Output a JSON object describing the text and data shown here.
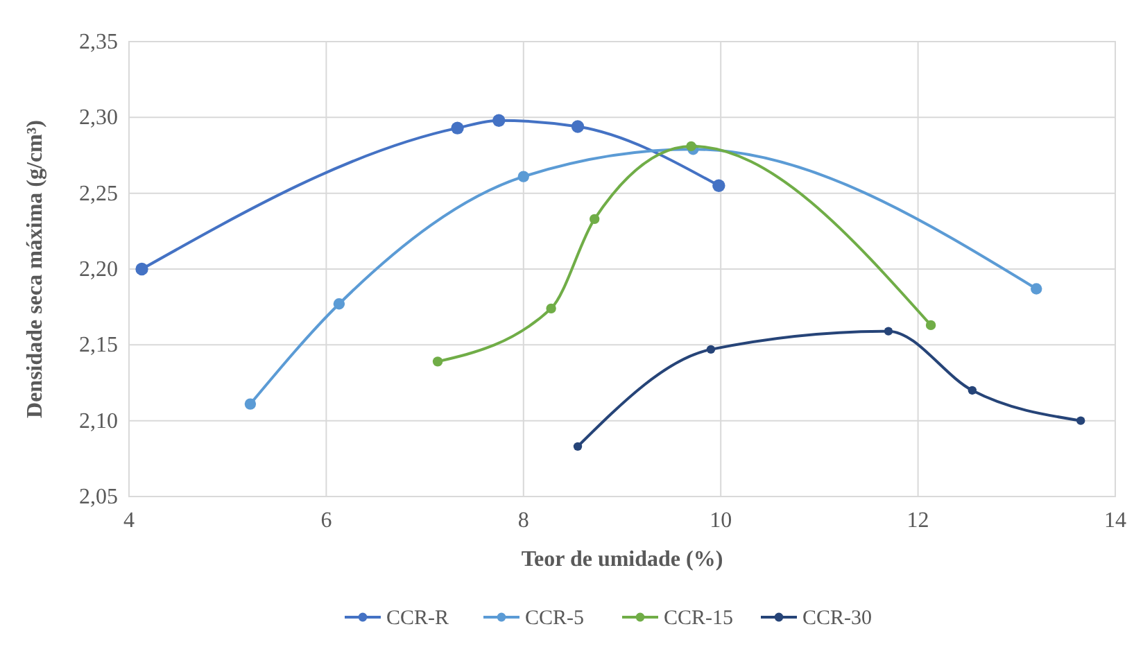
{
  "chart_data": {
    "type": "line",
    "xlabel": "Teor de umidade (%)",
    "ylabel": "Densidade seca máxima (g/cm³)",
    "xlim": [
      4,
      14
    ],
    "xticks": [
      4,
      6,
      8,
      10,
      12,
      14
    ],
    "ylim": [
      2.05,
      2.35
    ],
    "yticks": [
      {
        "value": 2.05,
        "label": "2,05"
      },
      {
        "value": 2.1,
        "label": "2,10"
      },
      {
        "value": 2.15,
        "label": "2,15"
      },
      {
        "value": 2.2,
        "label": "2,20"
      },
      {
        "value": 2.25,
        "label": "2,25"
      },
      {
        "value": 2.3,
        "label": "2,30"
      },
      {
        "value": 2.35,
        "label": "2,35"
      }
    ],
    "grid": true,
    "legend": "bottom",
    "marker": "circle",
    "line_style": "solid",
    "series": [
      {
        "name": "CCR-R",
        "color": "#4472c4",
        "x": [
          4.13,
          7.33,
          7.75,
          8.55,
          9.98
        ],
        "values": [
          2.2,
          2.293,
          2.298,
          2.294,
          2.255
        ]
      },
      {
        "name": "CCR-5",
        "color": "#5b9bd5",
        "x": [
          5.23,
          6.13,
          8.0,
          9.72,
          13.2
        ],
        "values": [
          2.111,
          2.177,
          2.261,
          2.279,
          2.187
        ]
      },
      {
        "name": "CCR-15",
        "color": "#70ad47",
        "x": [
          7.13,
          8.28,
          8.72,
          9.7,
          12.13
        ],
        "values": [
          2.139,
          2.174,
          2.233,
          2.281,
          2.163
        ]
      },
      {
        "name": "CCR-30",
        "color": "#264478",
        "x": [
          8.55,
          9.9,
          11.7,
          12.55,
          13.65
        ],
        "values": [
          2.083,
          2.147,
          2.159,
          2.12,
          2.1
        ]
      }
    ]
  }
}
